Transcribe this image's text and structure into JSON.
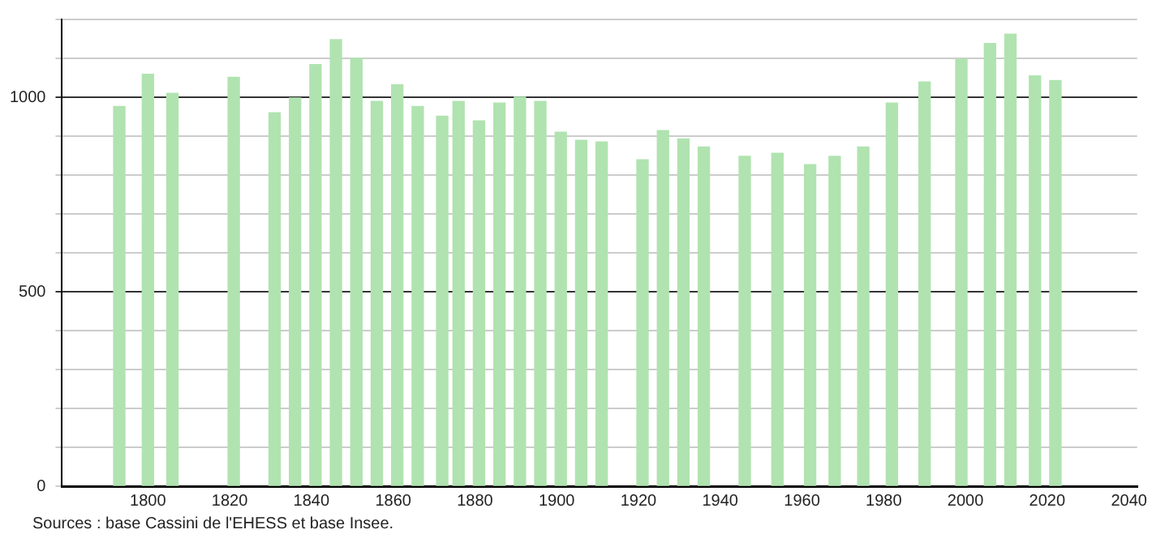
{
  "chart_data": {
    "type": "bar",
    "x": [
      1793,
      1800,
      1806,
      1821,
      1831,
      1836,
      1841,
      1846,
      1851,
      1856,
      1861,
      1866,
      1872,
      1876,
      1881,
      1886,
      1891,
      1896,
      1901,
      1906,
      1911,
      1921,
      1926,
      1931,
      1936,
      1946,
      1954,
      1962,
      1968,
      1975,
      1982,
      1990,
      1999,
      2006,
      2011,
      2017,
      2022
    ],
    "values": [
      976,
      1059,
      1010,
      1051,
      960,
      998,
      1084,
      1148,
      1100,
      989,
      1032,
      976,
      951,
      989,
      939,
      985,
      1000,
      989,
      910,
      889,
      885,
      839,
      914,
      893,
      872,
      848,
      856,
      827,
      848,
      872,
      985,
      1039,
      1098,
      1138,
      1162,
      1055,
      1043
    ],
    "color": "#b0e3b0",
    "xlim": [
      1779,
      2042
    ],
    "xticks": [
      1800,
      1820,
      1840,
      1860,
      1880,
      1900,
      1920,
      1940,
      1960,
      1980,
      2000,
      2020,
      2040
    ],
    "ylim": [
      0,
      1200
    ],
    "yticks": [
      0,
      {
        "value": 100,
        "label": null
      },
      {
        "value": 200,
        "label": null
      },
      {
        "value": 300,
        "label": null
      },
      {
        "value": 400,
        "label": null
      },
      500,
      {
        "value": 600,
        "label": null
      },
      {
        "value": 700,
        "label": null
      },
      {
        "value": 800,
        "label": null
      },
      {
        "value": 900,
        "label": null
      },
      1000,
      {
        "value": 1100,
        "label": null
      },
      {
        "value": 1200,
        "label": null
      }
    ],
    "grid": "y",
    "annotations": [
      "Sources : base Cassini de l'EHESS et base Insee."
    ]
  }
}
